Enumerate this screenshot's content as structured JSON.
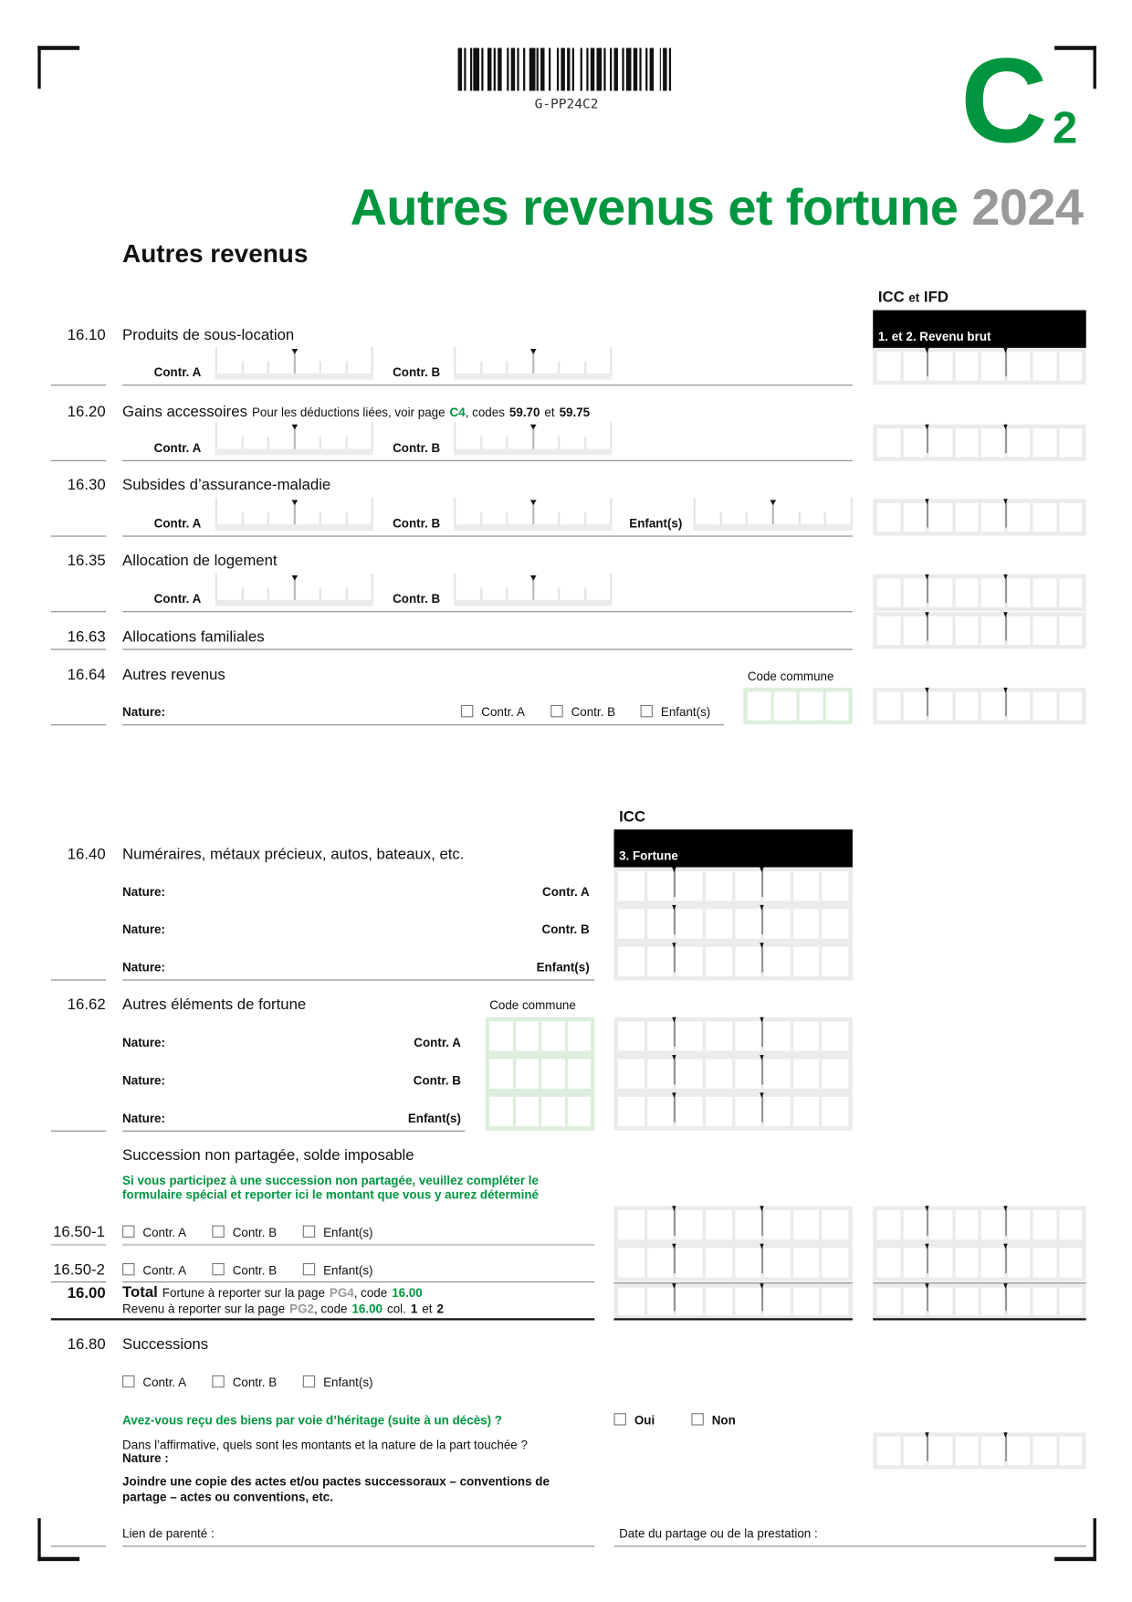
{
  "barcode": {
    "code": "G-PP24C2"
  },
  "form_id": {
    "letter": "C",
    "sub": "2"
  },
  "title": {
    "main": "Autres revenus et fortune",
    "year": "2024"
  },
  "section_title": "Autres revenus",
  "col_headers": {
    "icc_ifd_1": "ICC",
    "icc_ifd_2": "et",
    "icc_ifd_3": "IFD",
    "revenu_brut": "1. et 2. Revenu brut",
    "icc": "ICC",
    "fortune": "3. Fortune"
  },
  "labels": {
    "contr_a": "Contr. A",
    "contr_b": "Contr. B",
    "enfants": "Enfant(s)",
    "nature": "Nature:",
    "code_commune": "Code commune"
  },
  "rows": {
    "r1610": {
      "code": "16.10",
      "label": "Produits de sous-location"
    },
    "r1620": {
      "code": "16.20",
      "label": "Gains accessoires",
      "note_1": "Pour les déductions liées, voir page",
      "note_page": "C4",
      "note_2": ", codes",
      "note_c1": "59.70",
      "note_3": "et",
      "note_c2": "59.75"
    },
    "r1630": {
      "code": "16.30",
      "label": "Subsides d’assurance-maladie"
    },
    "r1635": {
      "code": "16.35",
      "label": "Allocation de logement"
    },
    "r1663": {
      "code": "16.63",
      "label": "Allocations familiales"
    },
    "r1664": {
      "code": "16.64",
      "label": "Autres revenus"
    },
    "r1640": {
      "code": "16.40",
      "label": "Numéraires, métaux précieux, autos, bateaux, etc."
    },
    "r1662": {
      "code": "16.62",
      "label": "Autres éléments de fortune"
    },
    "succ_np": {
      "label": "Succession non partagée, solde imposable",
      "note_line1": "Si vous participez à une succession non partagée, veuillez compléter le",
      "note_line2": "formulaire spécial et reporter ici le montant que vous y aurez déterminé"
    },
    "r1650_1": {
      "code": "16.50-1"
    },
    "r1650_2": {
      "code": "16.50-2"
    },
    "r1600": {
      "code": "16.00",
      "label": "Total",
      "l1_a": "Fortune à reporter sur la page",
      "l1_page": "PG4",
      "l1_b": ", code",
      "l1_code": "16.00",
      "l2_a": "Revenu à reporter sur la page",
      "l2_page": "PG2",
      "l2_b": ", code",
      "l2_code": "16.00",
      "l2_c": "col.",
      "l2_d": "1",
      "l2_e": "et",
      "l2_f": "2"
    },
    "r1680": {
      "code": "16.80",
      "label": "Successions",
      "question": "Avez-vous reçu des biens par voie d’héritage (suite à un décès) ?",
      "oui": "Oui",
      "non": "Non",
      "detail": "Dans l’affirmative, quels sont les montants et la nature de la part touchée ?",
      "nature": "Nature :",
      "join_1": "Joindre une copie des actes et/ou pactes successoraux – conventions de",
      "join_2": "partage – actes ou conventions, etc.",
      "lien": "Lien de parenté :",
      "date": "Date du partage ou de la prestation :"
    }
  },
  "colors": {
    "brand_green": "#00963f",
    "year_grey": "#999999",
    "box_grey": "#ebebeb",
    "commune_green": "#ddeedd"
  }
}
